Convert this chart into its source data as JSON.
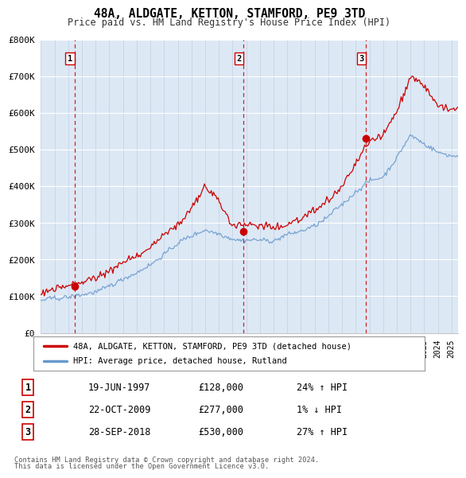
{
  "title": "48A, ALDGATE, KETTON, STAMFORD, PE9 3TD",
  "subtitle": "Price paid vs. HM Land Registry's House Price Index (HPI)",
  "ylim": [
    0,
    800000
  ],
  "yticks": [
    0,
    100000,
    200000,
    300000,
    400000,
    500000,
    600000,
    700000,
    800000
  ],
  "ytick_labels": [
    "£0",
    "£100K",
    "£200K",
    "£300K",
    "£400K",
    "£500K",
    "£600K",
    "£700K",
    "£800K"
  ],
  "sale_dates": [
    1997.47,
    2009.81,
    2018.74
  ],
  "sale_prices": [
    128000,
    277000,
    530000
  ],
  "sale_labels": [
    "1",
    "2",
    "3"
  ],
  "legend_property": "48A, ALDGATE, KETTON, STAMFORD, PE9 3TD (detached house)",
  "legend_hpi": "HPI: Average price, detached house, Rutland",
  "table_rows": [
    [
      "1",
      "19-JUN-1997",
      "£128,000",
      "24% ↑ HPI"
    ],
    [
      "2",
      "22-OCT-2009",
      "£277,000",
      "1% ↓ HPI"
    ],
    [
      "3",
      "28-SEP-2018",
      "£530,000",
      "27% ↑ HPI"
    ]
  ],
  "footnote1": "Contains HM Land Registry data © Crown copyright and database right 2024.",
  "footnote2": "This data is licensed under the Open Government Licence v3.0.",
  "bg_color": "#dde8f5",
  "grid_color": "#c8d8ec",
  "property_line_color": "#cc0000",
  "hpi_line_color": "#6699cc",
  "sale_marker_color": "#cc0000",
  "sale_vline_color": "#cc0000",
  "xlim_left": 1995.0,
  "xlim_right": 2025.5
}
